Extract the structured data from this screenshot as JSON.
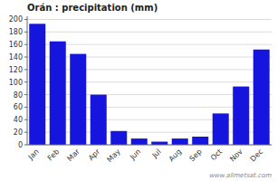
{
  "chart_data": {
    "type": "bar",
    "title": "Orán : precipitation (mm)",
    "categories": [
      "Jan",
      "Feb",
      "Mar",
      "Apr",
      "May",
      "Jun",
      "Jul",
      "Aug",
      "Sep",
      "Oct",
      "Nov",
      "Dec"
    ],
    "values": [
      193,
      165,
      145,
      80,
      22,
      10,
      5,
      10,
      13,
      50,
      93,
      152
    ],
    "color": "#1515dd",
    "ylim": [
      0,
      205
    ],
    "yticks": [
      0,
      20,
      40,
      60,
      80,
      100,
      120,
      140,
      160,
      180,
      200
    ],
    "grid": true,
    "annotations": [
      "www.allmetsat.com"
    ]
  }
}
